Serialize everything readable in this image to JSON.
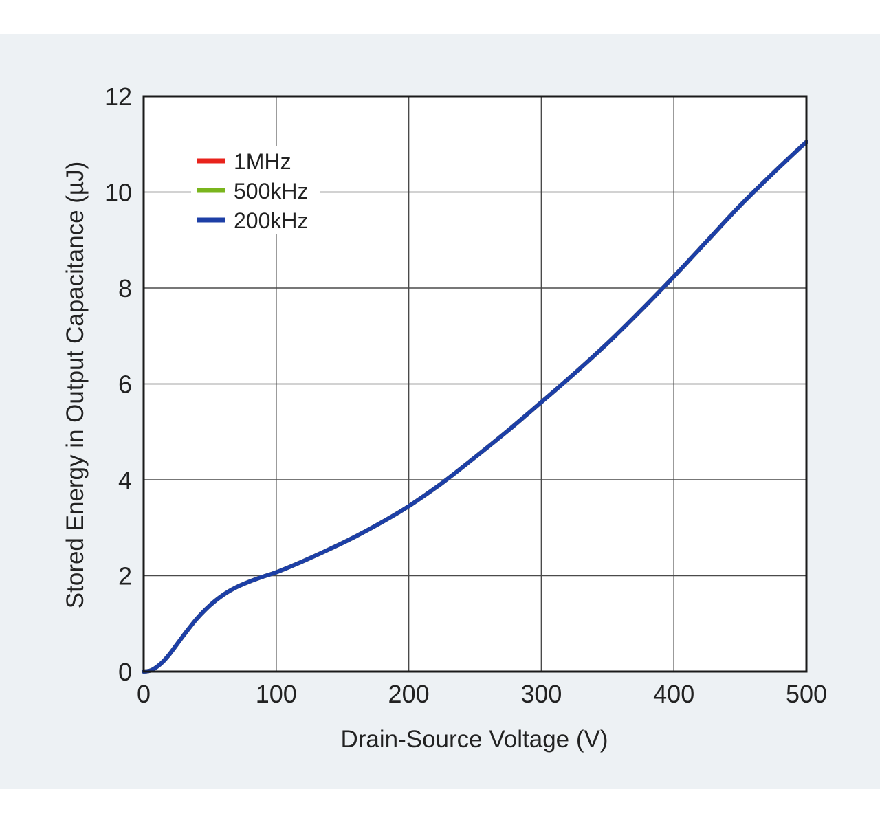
{
  "chart_data": {
    "type": "line",
    "title": "",
    "xlabel": "Drain-Source Voltage (V)",
    "ylabel": "Stored Energy in Output Capacitance (µJ)",
    "xlim": [
      0,
      500
    ],
    "ylim": [
      0,
      12
    ],
    "x_ticks": [
      "0",
      "100",
      "200",
      "300",
      "400",
      "500"
    ],
    "y_ticks": [
      "0",
      "2",
      "4",
      "6",
      "8",
      "10",
      "12"
    ],
    "grid": true,
    "legend_position": "top-left",
    "series": [
      {
        "name": "1MHz",
        "color": "#e8231c",
        "x": [
          0,
          5,
          10,
          15,
          20,
          30,
          40,
          50,
          60,
          70,
          80,
          90,
          100,
          120,
          140,
          160,
          180,
          200,
          225,
          250,
          275,
          300,
          325,
          350,
          375,
          400,
          425,
          450,
          475,
          500
        ],
        "y": [
          0,
          0.02,
          0.1,
          0.22,
          0.38,
          0.75,
          1.1,
          1.38,
          1.6,
          1.76,
          1.88,
          1.98,
          2.07,
          2.3,
          2.55,
          2.82,
          3.12,
          3.45,
          3.93,
          4.47,
          5.03,
          5.62,
          6.22,
          6.85,
          7.53,
          8.24,
          8.98,
          9.72,
          10.4,
          11.05
        ]
      },
      {
        "name": "500kHz",
        "color": "#7ab51d",
        "x": [
          0,
          5,
          10,
          15,
          20,
          30,
          40,
          50,
          60,
          70,
          80,
          90,
          100,
          120,
          140,
          160,
          180,
          200,
          225,
          250,
          275,
          300,
          325,
          350,
          375,
          400,
          425,
          450,
          475,
          500
        ],
        "y": [
          0,
          0.02,
          0.1,
          0.22,
          0.38,
          0.75,
          1.1,
          1.38,
          1.6,
          1.76,
          1.88,
          1.98,
          2.07,
          2.3,
          2.55,
          2.82,
          3.12,
          3.45,
          3.93,
          4.47,
          5.03,
          5.62,
          6.22,
          6.85,
          7.53,
          8.24,
          8.98,
          9.72,
          10.4,
          11.05
        ]
      },
      {
        "name": "200kHz",
        "color": "#1d3fa6",
        "x": [
          0,
          5,
          10,
          15,
          20,
          30,
          40,
          50,
          60,
          70,
          80,
          90,
          100,
          120,
          140,
          160,
          180,
          200,
          225,
          250,
          275,
          300,
          325,
          350,
          375,
          400,
          425,
          450,
          475,
          500
        ],
        "y": [
          0,
          0.02,
          0.1,
          0.22,
          0.38,
          0.75,
          1.1,
          1.38,
          1.6,
          1.76,
          1.88,
          1.98,
          2.07,
          2.3,
          2.55,
          2.82,
          3.12,
          3.45,
          3.93,
          4.47,
          5.03,
          5.62,
          6.22,
          6.85,
          7.53,
          8.24,
          8.98,
          9.72,
          10.4,
          11.05
        ]
      }
    ]
  }
}
